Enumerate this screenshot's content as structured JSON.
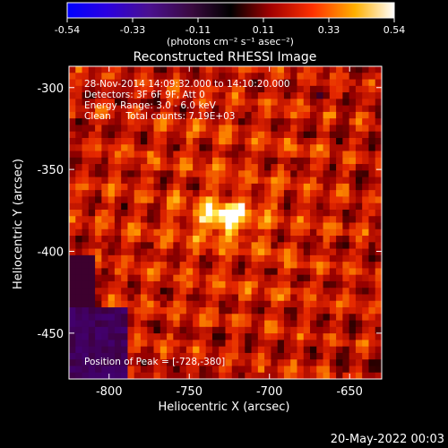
{
  "colorbar": {
    "ticks": [
      "-0.54",
      "-0.33",
      "-0.11",
      "0.11",
      "0.33",
      "0.54"
    ],
    "unit_label": "(photons cm⁻² s⁻¹ asec⁻²)",
    "range": [
      -0.54,
      0.54
    ]
  },
  "chart_data": {
    "type": "heatmap",
    "title": "Reconstructed RHESSI Image",
    "xlabel": "Heliocentric X (arcsec)",
    "ylabel": "Heliocentric Y (arcsec)",
    "xlim": [
      -825,
      -630
    ],
    "ylim": [
      -478,
      -287
    ],
    "xticks": [
      "-800",
      "-750",
      "-700",
      "-650"
    ],
    "yticks": [
      "-300",
      "-350",
      "-400",
      "-450"
    ],
    "xtick_values": [
      -800,
      -750,
      -700,
      -650
    ],
    "ytick_values": [
      -300,
      -350,
      -400,
      -450
    ],
    "colormap": "rhessi-hot-with-blue-negatives",
    "peak_position": [
      -728,
      -380
    ],
    "info_lines": [
      "28-Nov-2014 14:09:32.000 to 14:10:20.000",
      "Detectors: 3F 6F 9F, Att 0",
      "Energy Range: 3.0 - 6.0 keV",
      "Clean     Total counts: 7.19E+03"
    ],
    "peak_label": "Position of Peak = [-728,-380]"
  },
  "footer_date": "20-May-2022 00:03"
}
